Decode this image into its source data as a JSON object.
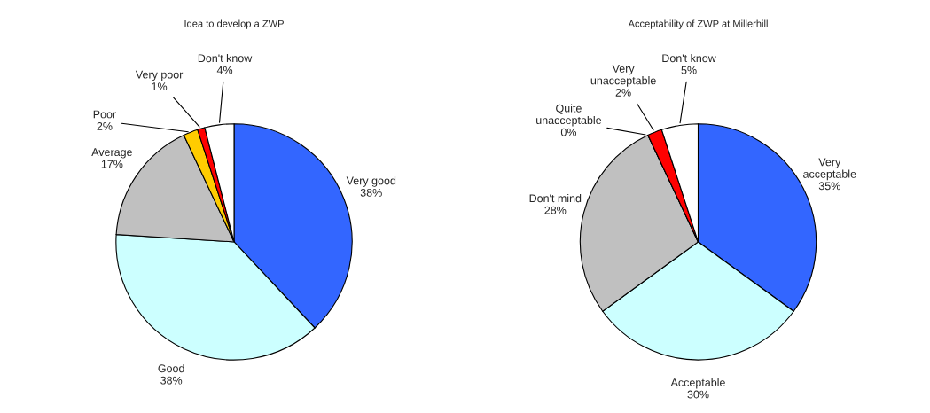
{
  "chart_data": [
    {
      "type": "pie",
      "title": "Idea to develop a ZWP",
      "categories": [
        "Very good",
        "Good",
        "Average",
        "Poor",
        "Very poor",
        "Don't know"
      ],
      "values": [
        38,
        38,
        17,
        2,
        1,
        4
      ],
      "colors": [
        "#3366ff",
        "#ccffff",
        "#c0c0c0",
        "#ffcc00",
        "#ff0000",
        "#ffffff"
      ],
      "value_labels": [
        "38%",
        "38%",
        "17%",
        "2%",
        "1%",
        "4%"
      ]
    },
    {
      "type": "pie",
      "title": "Acceptability of ZWP at Millerhill",
      "categories": [
        "Very\nacceptable",
        "Acceptable",
        "Don't mind",
        "Quite\nunacceptable",
        "Very\nunacceptable",
        "Don't know"
      ],
      "values": [
        35,
        30,
        28,
        0,
        2,
        5
      ],
      "colors": [
        "#3366ff",
        "#ccffff",
        "#c0c0c0",
        "#993366",
        "#ff0000",
        "#ffffff"
      ],
      "value_labels": [
        "35%",
        "30%",
        "28%",
        "0%",
        "2%",
        "5%"
      ]
    }
  ]
}
